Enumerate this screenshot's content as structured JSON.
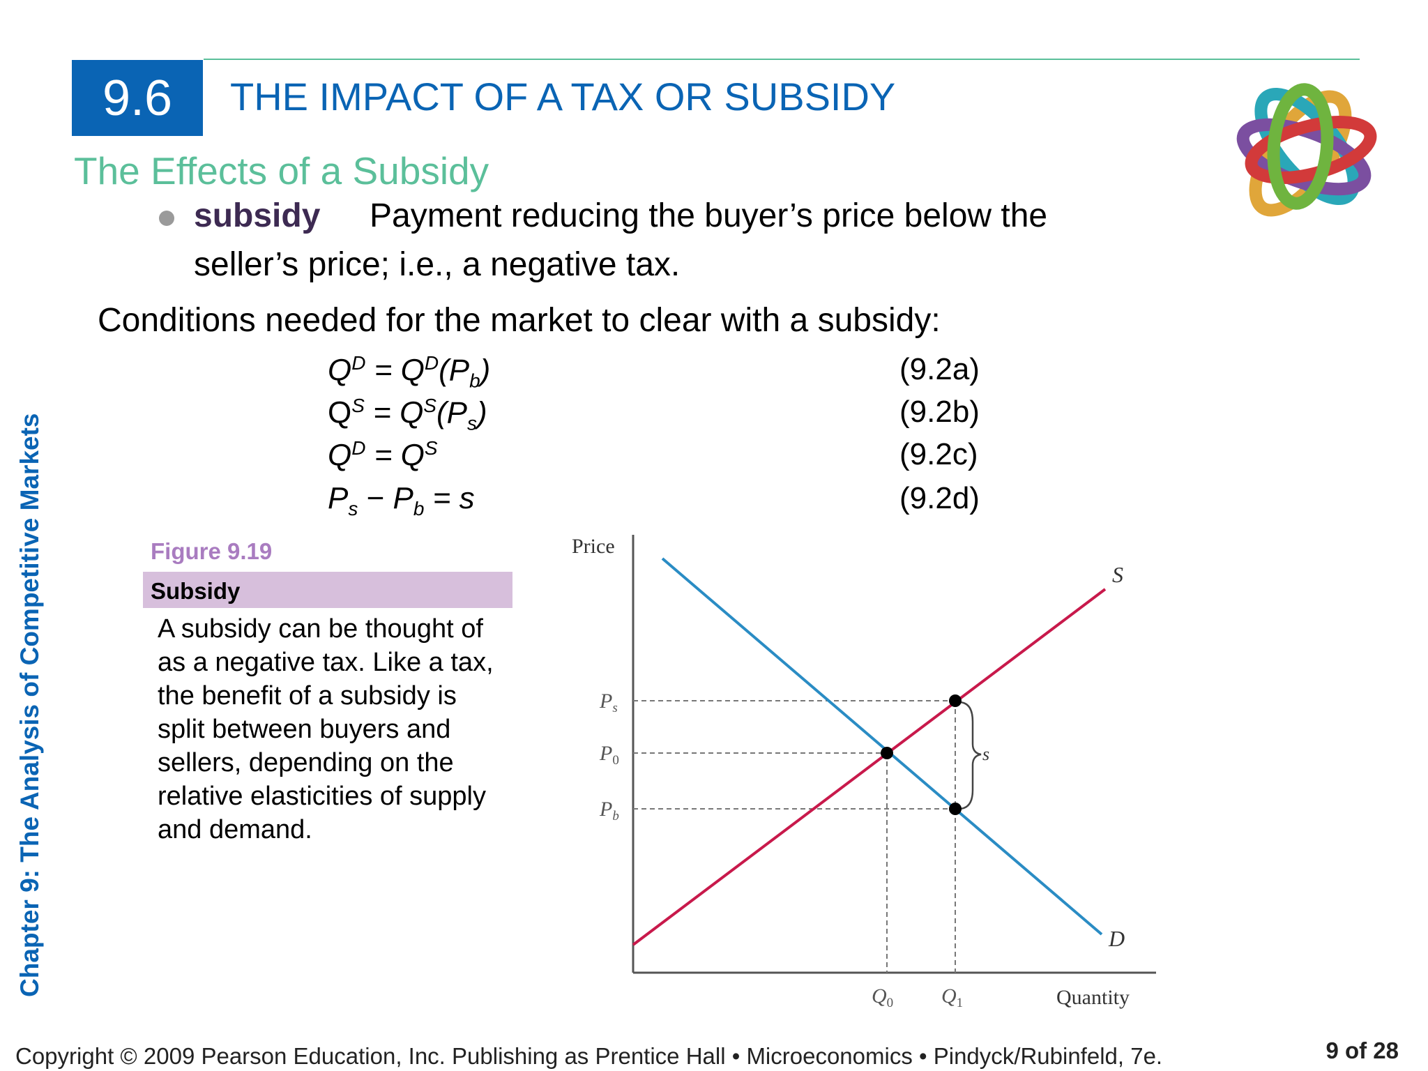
{
  "header": {
    "section_number": "9.6",
    "section_title": "THE IMPACT OF A TAX OR SUBSIDY"
  },
  "subheading": "The Effects of a Subsidy",
  "definition": {
    "term": "subsidy",
    "text_line1": "Payment reducing the buyer’s price below the",
    "text_line2": "seller’s price; i.e., a negative tax."
  },
  "conditions_intro": "Conditions needed for the market to clear with a subsidy:",
  "equations": [
    {
      "number": "(9.2a)"
    },
    {
      "number": "(9.2b)"
    },
    {
      "number": "(9.2c)"
    },
    {
      "number": "(9.2d)"
    }
  ],
  "figure": {
    "label": "Figure 9.19",
    "title": "Subsidy",
    "caption": [
      "A subsidy can be thought of",
      "as a negative tax. Like a tax,",
      "the benefit of a subsidy is",
      "split between buyers and",
      "sellers, depending on the",
      "relative elasticities of supply",
      "and demand."
    ]
  },
  "chart_data": {
    "type": "line",
    "ylabel": "Price",
    "xlabel": "Quantity",
    "x_ticks": [
      "Q0",
      "Q1"
    ],
    "y_ticks": [
      "Ps",
      "P0",
      "Pb"
    ],
    "series": [
      {
        "name": "S",
        "color": "#c8194b"
      },
      {
        "name": "D",
        "color": "#2a8cc4"
      }
    ],
    "points": [
      "equilibrium (Q0, P0)",
      "(Q1, Ps)",
      "(Q1, Pb)"
    ],
    "annotation": "s"
  },
  "sidebar_text": "Chapter 9:  The Analysis of Competitive Markets",
  "footer": "Copyright © 2009 Pearson Education, Inc. Publishing as Prentice Hall  •  Microeconomics  •  Pindyck/Rubinfeld, 7e.",
  "page_number": "9 of 28",
  "colors": {
    "accent_blue": "#0a64b4",
    "accent_green": "#5bbf9a",
    "accent_purple": "#a97cc0"
  }
}
